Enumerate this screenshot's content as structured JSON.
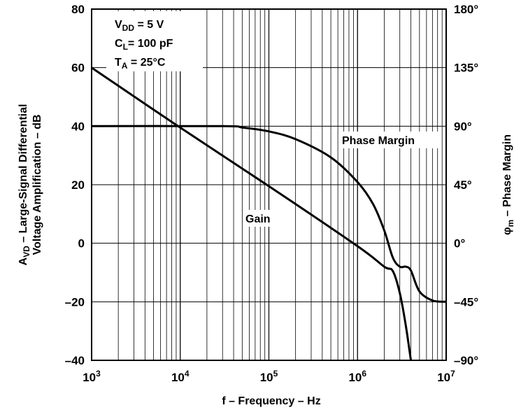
{
  "chart_data": {
    "type": "line",
    "xlabel": "f – Frequency – Hz",
    "ylabel_left": [
      "AVD – Large-Signal Differential",
      "Voltage Amplification – dB"
    ],
    "ylabel_right": "φm – Phase Margin",
    "x_scale": "log",
    "xlim": [
      1000,
      10000000
    ],
    "ylim_left": [
      -40,
      80
    ],
    "ylim_right": [
      -90,
      180
    ],
    "grid": true,
    "x_tick_labels": [
      "10^3",
      "10^4",
      "10^5",
      "10^6",
      "10^7"
    ],
    "x_ticks": [
      1000,
      10000,
      100000,
      1000000,
      10000000
    ],
    "y_left_ticks": [
      80,
      60,
      40,
      20,
      0,
      -20,
      -40
    ],
    "y_left_tick_labels": [
      "80",
      "60",
      "40",
      "20",
      "0",
      "–20",
      "–40"
    ],
    "y_right_ticks": [
      180,
      135,
      90,
      45,
      0,
      -45,
      -90
    ],
    "y_right_tick_labels": [
      "180°",
      "135°",
      "90°",
      "45°",
      "0°",
      "–45°",
      "–90°"
    ],
    "annotation_box": [
      "V_DD = 5 V",
      "C_L= 100 pF",
      "T_A = 25°C"
    ],
    "series": [
      {
        "name": "Gain",
        "axis": "left",
        "x": [
          1000,
          10000,
          100000,
          1000000,
          2000000,
          2500000,
          3000000,
          3500000,
          4000000
        ],
        "y": [
          60,
          39.5,
          19.5,
          -1,
          -8,
          -9.5,
          -17,
          -28,
          -40
        ]
      },
      {
        "name": "Phase Margin",
        "axis": "right",
        "x": [
          1000,
          30000,
          50000,
          100000,
          200000,
          500000,
          1000000,
          1500000,
          2000000,
          2500000,
          3000000,
          3500000,
          4000000,
          5000000,
          7000000,
          10000000
        ],
        "y": [
          90,
          90,
          89,
          86,
          80,
          66,
          47,
          30,
          10,
          -11,
          -18,
          -18,
          -21,
          -37,
          -44,
          -45
        ]
      }
    ]
  }
}
